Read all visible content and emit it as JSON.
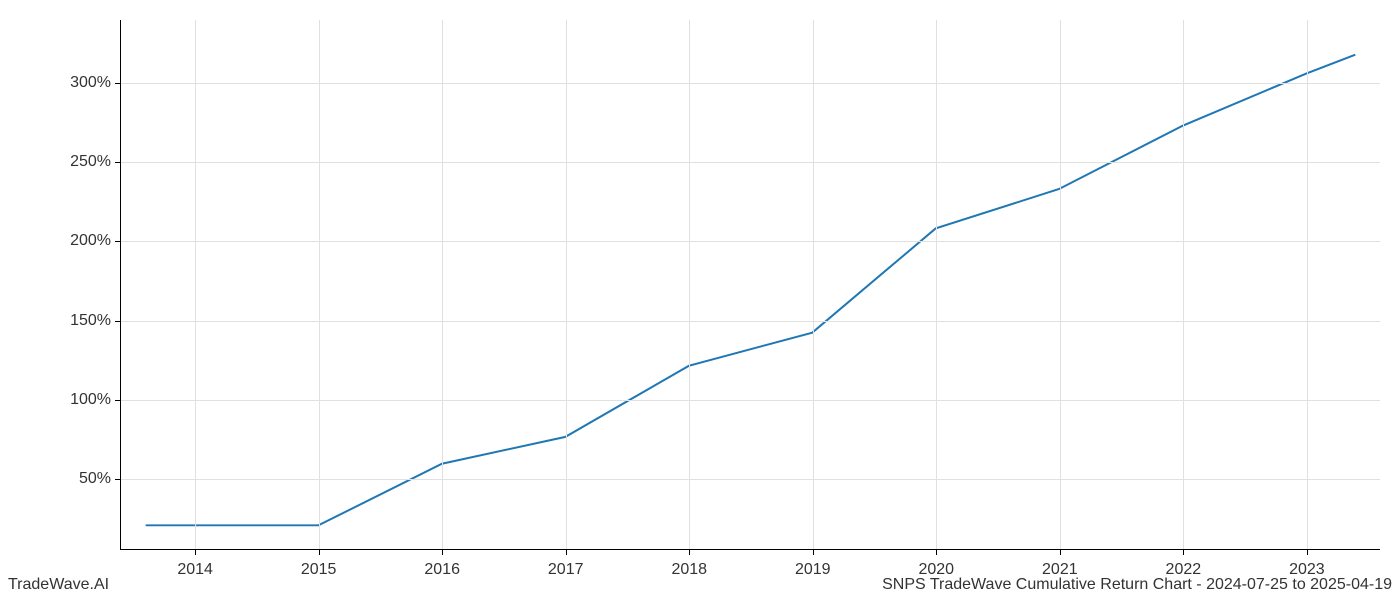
{
  "chart": {
    "type": "line",
    "x_values": [
      2013.6,
      2014,
      2015,
      2016,
      2017,
      2018,
      2019,
      2020,
      2021,
      2022,
      2023,
      2023.4
    ],
    "y_values": [
      20,
      20,
      20,
      59,
      76,
      121,
      142,
      208,
      233,
      273,
      306,
      318
    ],
    "x_ticks": [
      2014,
      2015,
      2016,
      2017,
      2018,
      2019,
      2020,
      2021,
      2022,
      2023
    ],
    "x_tick_labels": [
      "2014",
      "2015",
      "2016",
      "2017",
      "2018",
      "2019",
      "2020",
      "2021",
      "2022",
      "2023"
    ],
    "y_ticks": [
      50,
      100,
      150,
      200,
      250,
      300
    ],
    "y_tick_labels": [
      "50%",
      "100%",
      "150%",
      "200%",
      "250%",
      "300%"
    ],
    "xlim": [
      2013.4,
      2023.6
    ],
    "ylim": [
      5,
      340
    ],
    "line_color": "#1f77b4",
    "line_width": 2,
    "grid_color": "#e0e0e0",
    "background_color": "#ffffff",
    "border_color": "#000000",
    "tick_fontsize": 16,
    "footer_fontsize": 16,
    "text_color": "#333333"
  },
  "footer": {
    "left": "TradeWave.AI",
    "right": "SNPS TradeWave Cumulative Return Chart - 2024-07-25 to 2025-04-19"
  }
}
